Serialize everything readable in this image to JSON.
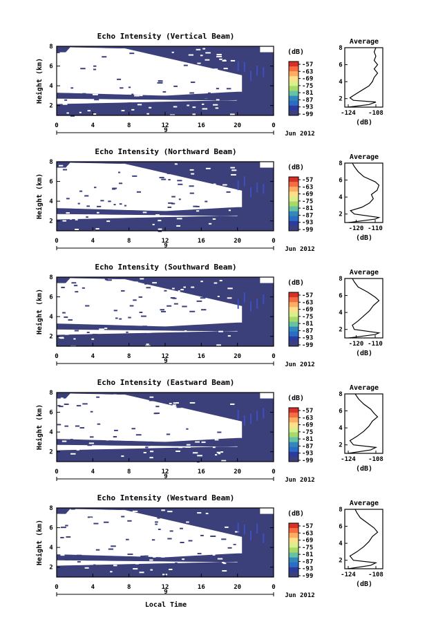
{
  "chart_data": [
    {
      "type": "heatmap",
      "title": "Echo Intensity (Vertical Beam)",
      "ylabel": "Height (km)",
      "x_ticks": [
        "0",
        "4",
        "8",
        "12",
        "16",
        "20",
        "0"
      ],
      "y_ticks": [
        "8",
        "6",
        "4",
        "2"
      ],
      "xlim": [
        0,
        24
      ],
      "ylim": [
        1,
        8
      ],
      "date_center": "9",
      "date_right": "Jun 2012",
      "colorbar": {
        "unit": "(dB)",
        "labels": [
          "-57",
          "-63",
          "-69",
          "-75",
          "-81",
          "-87",
          "-93",
          "-99"
        ]
      },
      "avg_title": "Average",
      "avg_xticks": [
        "-124",
        "-108"
      ],
      "avg_xlim": [
        -126,
        -104
      ],
      "avg_yticks": [
        "8",
        "6",
        "4",
        "2"
      ],
      "avg_xlabel": "(dB)",
      "profile": [
        [
          -124,
          1
        ],
        [
          -112,
          1.3
        ],
        [
          -108,
          1.6
        ],
        [
          -121,
          1.8
        ],
        [
          -123,
          2.1
        ],
        [
          -120,
          2.5
        ],
        [
          -116,
          3.0
        ],
        [
          -112,
          3.5
        ],
        [
          -110,
          4.0
        ],
        [
          -109,
          4.5
        ],
        [
          -107,
          5.0
        ],
        [
          -109,
          5.5
        ],
        [
          -107,
          6.0
        ],
        [
          -109,
          6.5
        ],
        [
          -108,
          7.0
        ],
        [
          -109,
          7.5
        ],
        [
          -108,
          8.0
        ]
      ]
    },
    {
      "type": "heatmap",
      "title": "Echo Intensity (Northward Beam)",
      "ylabel": "Height (km)",
      "x_ticks": [
        "0",
        "4",
        "8",
        "12",
        "16",
        "20",
        "0"
      ],
      "y_ticks": [
        "8",
        "6",
        "4",
        "2"
      ],
      "xlim": [
        0,
        24
      ],
      "ylim": [
        1,
        8
      ],
      "date_center": "9",
      "date_right": "Jun 2012",
      "colorbar": {
        "unit": "(dB)",
        "labels": [
          "-57",
          "-63",
          "-69",
          "-75",
          "-81",
          "-87",
          "-93",
          "-99"
        ]
      },
      "avg_title": "Average",
      "avg_xticks": [
        "-120",
        "-110"
      ],
      "avg_xlim": [
        -126,
        -106
      ],
      "avg_yticks": [
        "8",
        "6",
        "4",
        "2"
      ],
      "avg_xlabel": "(dB)",
      "profile": [
        [
          -124,
          1
        ],
        [
          -110,
          1.4
        ],
        [
          -108,
          1.6
        ],
        [
          -121,
          2.0
        ],
        [
          -123,
          2.4
        ],
        [
          -117,
          2.8
        ],
        [
          -113,
          3.3
        ],
        [
          -111,
          3.8
        ],
        [
          -112,
          4.3
        ],
        [
          -109,
          4.8
        ],
        [
          -108,
          5.4
        ],
        [
          -110,
          5.8
        ],
        [
          -116,
          6.4
        ],
        [
          -119,
          7.0
        ],
        [
          -121,
          7.6
        ],
        [
          -122,
          8.0
        ]
      ]
    },
    {
      "type": "heatmap",
      "title": "Echo Intensity (Southward Beam)",
      "ylabel": "Height (km)",
      "x_ticks": [
        "0",
        "4",
        "8",
        "12",
        "16",
        "20",
        "0"
      ],
      "y_ticks": [
        "8",
        "6",
        "4",
        "2"
      ],
      "xlim": [
        0,
        24
      ],
      "ylim": [
        1,
        8
      ],
      "date_center": "9",
      "date_right": "Jun 2012",
      "colorbar": {
        "unit": "(dB)",
        "labels": [
          "-57",
          "-63",
          "-69",
          "-75",
          "-81",
          "-87",
          "-93",
          "-99"
        ]
      },
      "avg_title": "Average",
      "avg_xticks": [
        "-120",
        "-110"
      ],
      "avg_xlim": [
        -126,
        -106
      ],
      "avg_yticks": [
        "8",
        "6",
        "4",
        "2"
      ],
      "avg_xlabel": "(dB)",
      "profile": [
        [
          -124,
          1
        ],
        [
          -110,
          1.4
        ],
        [
          -108,
          1.6
        ],
        [
          -121,
          2.0
        ],
        [
          -122,
          2.5
        ],
        [
          -119,
          3.0
        ],
        [
          -116,
          3.6
        ],
        [
          -113,
          4.2
        ],
        [
          -111,
          4.8
        ],
        [
          -108,
          5.4
        ],
        [
          -110,
          5.8
        ],
        [
          -114,
          6.4
        ],
        [
          -119,
          7.0
        ],
        [
          -121,
          7.6
        ],
        [
          -122,
          8.0
        ]
      ]
    },
    {
      "type": "heatmap",
      "title": "Echo Intensity (Eastward Beam)",
      "ylabel": "Height (km)",
      "x_ticks": [
        "0",
        "4",
        "8",
        "12",
        "16",
        "20",
        "0"
      ],
      "y_ticks": [
        "8",
        "6",
        "4",
        "2"
      ],
      "xlim": [
        0,
        24
      ],
      "ylim": [
        1,
        8
      ],
      "date_center": "9",
      "date_right": "Jun 2012",
      "colorbar": {
        "unit": "(dB)",
        "labels": [
          "-57",
          "-63",
          "-69",
          "-75",
          "-81",
          "-87",
          "-93",
          "-99"
        ]
      },
      "avg_title": "Average",
      "avg_xticks": [
        "-124",
        "-108"
      ],
      "avg_xlim": [
        -126,
        -104
      ],
      "avg_yticks": [
        "8",
        "6",
        "4",
        "2"
      ],
      "avg_xlabel": "(dB)",
      "profile": [
        [
          -124,
          1
        ],
        [
          -111,
          1.4
        ],
        [
          -108,
          1.7
        ],
        [
          -121,
          2.0
        ],
        [
          -123,
          2.5
        ],
        [
          -119,
          3.0
        ],
        [
          -115,
          3.6
        ],
        [
          -112,
          4.2
        ],
        [
          -110,
          4.8
        ],
        [
          -107,
          5.3
        ],
        [
          -109,
          5.7
        ],
        [
          -111,
          6.2
        ],
        [
          -115,
          6.8
        ],
        [
          -118,
          7.4
        ],
        [
          -120,
          8.0
        ]
      ]
    },
    {
      "type": "heatmap",
      "title": "Echo Intensity (Westward Beam)",
      "ylabel": "Height (km)",
      "xlabel": "Local Time",
      "x_ticks": [
        "0",
        "4",
        "8",
        "12",
        "16",
        "20",
        "0"
      ],
      "y_ticks": [
        "8",
        "6",
        "4",
        "2"
      ],
      "xlim": [
        0,
        24
      ],
      "ylim": [
        1,
        8
      ],
      "date_center": "9",
      "date_right": "Jun 2012",
      "colorbar": {
        "unit": "(dB)",
        "labels": [
          "-57",
          "-63",
          "-69",
          "-75",
          "-81",
          "-87",
          "-93",
          "-99"
        ]
      },
      "avg_title": "Average",
      "avg_xticks": [
        "-124",
        "-108"
      ],
      "avg_xlim": [
        -126,
        -104
      ],
      "avg_yticks": [
        "8",
        "6",
        "4",
        "2"
      ],
      "avg_xlabel": "(dB)",
      "profile": [
        [
          -124,
          1
        ],
        [
          -111,
          1.4
        ],
        [
          -108,
          1.7
        ],
        [
          -121,
          2.0
        ],
        [
          -123,
          2.5
        ],
        [
          -119,
          3.0
        ],
        [
          -115,
          3.6
        ],
        [
          -112,
          4.2
        ],
        [
          -110,
          4.8
        ],
        [
          -107,
          5.3
        ],
        [
          -109,
          5.8
        ],
        [
          -113,
          6.4
        ],
        [
          -117,
          7.0
        ],
        [
          -119,
          7.6
        ],
        [
          -120,
          8.0
        ]
      ]
    }
  ],
  "colorbar_colors": [
    "#d73027",
    "#f46d43",
    "#fdae61",
    "#fee08b",
    "#d9ef8b",
    "#a6d96a",
    "#66c2a5",
    "#3288bd",
    "#2b6cc4",
    "#2b3c9e",
    "#3b3f7a"
  ],
  "field_color": "#3b3f7a",
  "echo_color": "#3f4fc0"
}
